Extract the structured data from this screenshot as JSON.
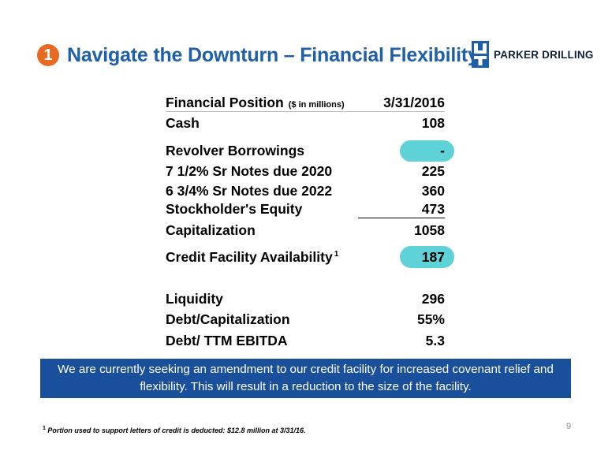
{
  "header": {
    "number": "1",
    "title": "Navigate the Downturn – Financial Flexibility"
  },
  "logo": {
    "icon": "parker-drilling-logo-icon",
    "text_first": "PARKER",
    "text_second": "DRILLING"
  },
  "table": {
    "heading_label": "Financial Position",
    "heading_units": "($ in millions)",
    "heading_date": "3/31/2016",
    "rows": [
      {
        "label": "Cash",
        "value": "108"
      },
      {
        "label": "Revolver Borrowings",
        "value": "-"
      },
      {
        "label": "7 1/2% Sr Notes due 2020",
        "value": "225"
      },
      {
        "label": "6 3/4% Sr Notes due 2022",
        "value": "360"
      },
      {
        "label": "Stockholder's Equity",
        "value": "473"
      },
      {
        "label": "Capitalization",
        "value": "1058"
      },
      {
        "label": "Credit Facility Availability",
        "sup": "1",
        "value": "187"
      },
      {
        "label": "Liquidity",
        "value": "296"
      },
      {
        "label": "Debt/Capitalization",
        "value": "55%"
      },
      {
        "label": "Debt/ TTM EBITDA",
        "value": "5.3"
      }
    ]
  },
  "banner": {
    "text": "We are currently seeking an amendment to our credit facility for increased covenant relief and flexibility.  This will result in a reduction to the size of the facility."
  },
  "footnote": {
    "marker": "1",
    "text": "Portion used to support letters of credit is deducted: $12.8 million at 3/31/16."
  },
  "page_number": "9",
  "colors": {
    "title_blue": "#1F5EA8",
    "number_orange": "#E86A22",
    "banner_blue": "#1A4F9B",
    "highlight_teal": "#5ED2D6"
  }
}
